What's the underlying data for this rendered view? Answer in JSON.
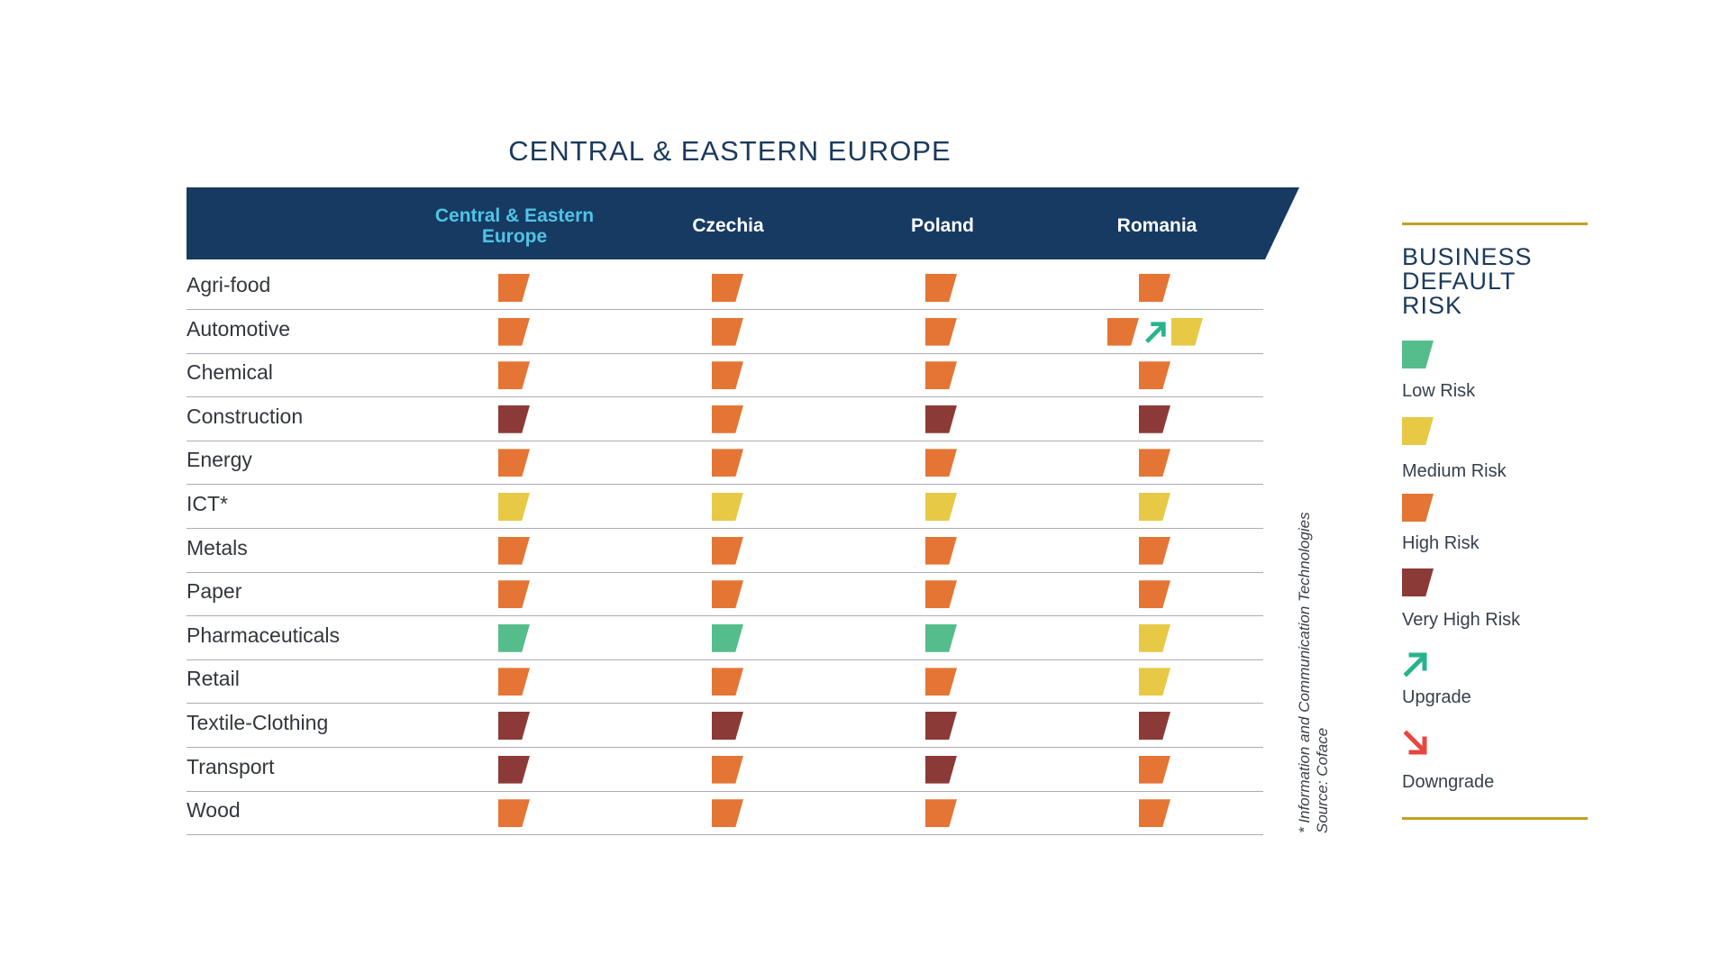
{
  "chart_data": {
    "type": "table",
    "title": "CENTRAL & EASTERN EUROPE",
    "columns": [
      "Central & Eastern Europe",
      "Czechia",
      "Poland",
      "Romania"
    ],
    "rows": [
      {
        "sector": "Agri-food",
        "ratings": [
          "high",
          "high",
          "high",
          "high"
        ]
      },
      {
        "sector": "Automotive",
        "ratings": [
          "high",
          "high",
          "high",
          "medium"
        ],
        "change": {
          "column": "Romania",
          "from": "high",
          "direction": "upgrade"
        }
      },
      {
        "sector": "Chemical",
        "ratings": [
          "high",
          "high",
          "high",
          "high"
        ]
      },
      {
        "sector": "Construction",
        "ratings": [
          "very_high",
          "high",
          "very_high",
          "very_high"
        ]
      },
      {
        "sector": "Energy",
        "ratings": [
          "high",
          "high",
          "high",
          "high"
        ]
      },
      {
        "sector": "ICT*",
        "ratings": [
          "medium",
          "medium",
          "medium",
          "medium"
        ]
      },
      {
        "sector": "Metals",
        "ratings": [
          "high",
          "high",
          "high",
          "high"
        ]
      },
      {
        "sector": "Paper",
        "ratings": [
          "high",
          "high",
          "high",
          "high"
        ]
      },
      {
        "sector": "Pharmaceuticals",
        "ratings": [
          "low",
          "low",
          "low",
          "medium"
        ]
      },
      {
        "sector": "Retail",
        "ratings": [
          "high",
          "high",
          "high",
          "medium"
        ]
      },
      {
        "sector": "Textile-Clothing",
        "ratings": [
          "very_high",
          "very_high",
          "very_high",
          "very_high"
        ]
      },
      {
        "sector": "Transport",
        "ratings": [
          "very_high",
          "high",
          "very_high",
          "high"
        ]
      },
      {
        "sector": "Wood",
        "ratings": [
          "high",
          "high",
          "high",
          "high"
        ]
      }
    ],
    "footnote_1": "* Information and Communication Technologies",
    "footnote_2": "Source: Coface"
  },
  "legend": {
    "title": "BUSINESS DEFAULT RISK",
    "items": [
      {
        "key": "low",
        "label": "Low Risk",
        "color": "#55bd8b"
      },
      {
        "key": "medium",
        "label": "Medium Risk",
        "color": "#e7c945"
      },
      {
        "key": "high",
        "label": "High Risk",
        "color": "#e57534"
      },
      {
        "key": "very_high",
        "label": "Very High Risk",
        "color": "#8b3a37"
      },
      {
        "key": "upgrade",
        "label": "Upgrade",
        "color": "#27b48c",
        "icon": "arrow-up-right-icon"
      },
      {
        "key": "downgrade",
        "label": "Downgrade",
        "color": "#e8453e",
        "icon": "arrow-down-right-icon"
      }
    ]
  }
}
